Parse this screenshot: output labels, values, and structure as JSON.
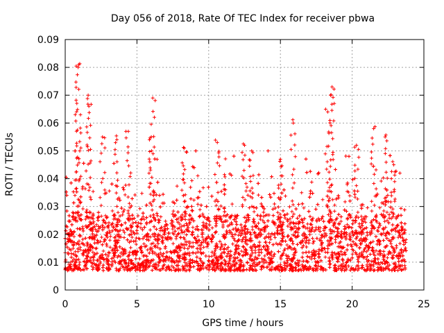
{
  "chart_data": {
    "type": "scatter",
    "title": "Day 056 of 2018, Rate Of TEC Index for receiver pbwa",
    "xlabel": "GPS time / hours",
    "ylabel": "ROTI / TECUs",
    "xlim": [
      0,
      25
    ],
    "ylim": [
      0,
      0.09
    ],
    "xticks": [
      "0",
      "5",
      "10",
      "15",
      "20",
      "25"
    ],
    "yticks": [
      "0",
      "0.01",
      "0.02",
      "0.03",
      "0.04",
      "0.05",
      "0.06",
      "0.07",
      "0.08",
      "0.09"
    ],
    "grid": true,
    "marker": "+",
    "color": "#ff0000",
    "x_range_of_data": [
      0,
      23.8
    ],
    "typical_band": [
      0.005,
      0.025
    ],
    "peaks": [
      {
        "x": 0.95,
        "y": 0.081
      },
      {
        "x": 0.9,
        "y": 0.08
      },
      {
        "x": 1.6,
        "y": 0.07
      },
      {
        "x": 1.65,
        "y": 0.066
      },
      {
        "x": 6.1,
        "y": 0.069
      },
      {
        "x": 0.7,
        "y": 0.063
      },
      {
        "x": 4.4,
        "y": 0.057
      },
      {
        "x": 6.0,
        "y": 0.055
      },
      {
        "x": 15.9,
        "y": 0.06
      },
      {
        "x": 18.6,
        "y": 0.073
      },
      {
        "x": 18.5,
        "y": 0.07
      },
      {
        "x": 18.3,
        "y": 0.064
      },
      {
        "x": 21.5,
        "y": 0.058
      },
      {
        "x": 22.3,
        "y": 0.055
      },
      {
        "x": 12.5,
        "y": 0.052
      },
      {
        "x": 10.6,
        "y": 0.053
      },
      {
        "x": 8.3,
        "y": 0.051
      },
      {
        "x": 3.6,
        "y": 0.054
      },
      {
        "x": 2.6,
        "y": 0.055
      },
      {
        "x": 20.3,
        "y": 0.052
      },
      {
        "x": 15.0,
        "y": 0.047
      },
      {
        "x": 13.0,
        "y": 0.05
      },
      {
        "x": 22.9,
        "y": 0.045
      }
    ]
  }
}
